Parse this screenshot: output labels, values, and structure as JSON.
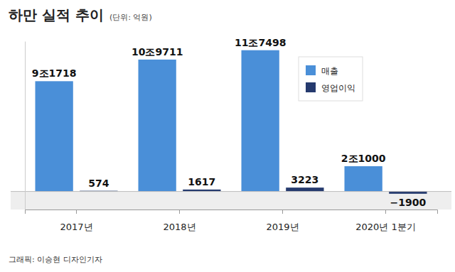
{
  "chart_data": {
    "type": "bar",
    "title": "하만 실적 추이",
    "subtitle": "(단위: 억원)",
    "categories": [
      "2017년",
      "2018년",
      "2019년",
      "2020년 1분기"
    ],
    "series": [
      {
        "name": "매출",
        "color": "#4a8fd8",
        "values": [
          91718,
          109711,
          117498,
          21000
        ],
        "value_labels": [
          "9조1718",
          "10조9711",
          "11조7498",
          "2조1000"
        ]
      },
      {
        "name": "영업이익",
        "color": "#253a6e",
        "values": [
          574,
          1617,
          3223,
          -1900
        ],
        "value_labels": [
          "574",
          "1617",
          "3223",
          "−1900"
        ]
      }
    ],
    "ylim": [
      -15000,
      125000
    ],
    "grid": false,
    "legend": "top-right",
    "data_labels": true,
    "tick_labels": "x",
    "annotations": [
      "그래픽: 이승현 디자인기자"
    ]
  }
}
